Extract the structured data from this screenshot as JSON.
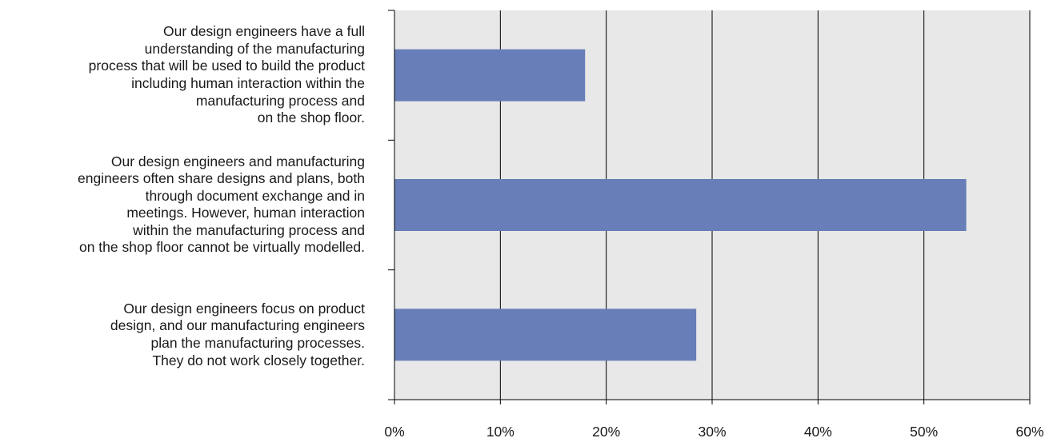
{
  "chart_data": {
    "type": "bar",
    "orientation": "horizontal",
    "categories": [
      "Our design engineers have a full\nunderstanding of the manufacturing\nprocess that will be used to build the product\nincluding human interaction within the\nmanufacturing process and\non the shop floor.",
      "Our design engineers and manufacturing\nengineers often share designs and plans, both\nthrough document exchange and in\nmeetings. However, human interaction\nwithin the manufacturing process and\non the shop floor cannot be virtually modelled.",
      "Our design engineers focus on product\ndesign, and our manufacturing engineers\nplan the manufacturing processes.\nThey do not work closely together."
    ],
    "values": [
      18,
      54,
      28.5
    ],
    "xlim": [
      0,
      60
    ],
    "x_ticks": [
      "0%",
      "10%",
      "20%",
      "30%",
      "40%",
      "50%",
      "60%"
    ],
    "grid": true,
    "legend": "none",
    "title": "",
    "xlabel": "",
    "ylabel": "",
    "colors": {
      "bar": "#687eb9",
      "plot_background": "#e8e8e8",
      "gridline": "#000000"
    }
  }
}
